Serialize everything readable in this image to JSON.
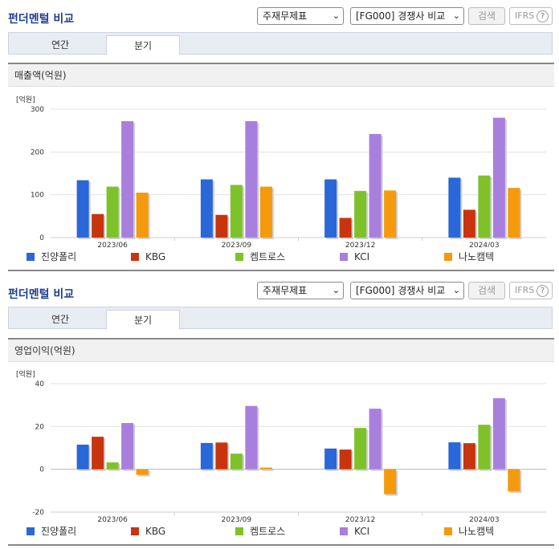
{
  "panels": [
    {
      "title": "펀더멘털 비교",
      "select1": "주재무제표",
      "select2": "[FG000] 경쟁사 비교",
      "search_label": "검색",
      "ifrs_label": "IFRS",
      "ifrs_help": "?",
      "tabs": [
        {
          "label": "연간"
        },
        {
          "label": "분기"
        }
      ],
      "active_tab": 1,
      "subtitle": "매출액(억원)",
      "unit": "[억원]"
    },
    {
      "title": "펀더멘털 비교",
      "select1": "주재무제표",
      "select2": "[FG000] 경쟁사 비교",
      "search_label": "검색",
      "ifrs_label": "IFRS",
      "ifrs_help": "?",
      "tabs": [
        {
          "label": "연간"
        },
        {
          "label": "분기"
        }
      ],
      "active_tab": 1,
      "subtitle": "영업이익(억원)",
      "unit": "[억원]"
    }
  ],
  "chart_data": [
    {
      "type": "bar",
      "title": "매출액(억원)",
      "ylabel": "[억원]",
      "categories": [
        "2023/06",
        "2023/09",
        "2023/12",
        "2024/03"
      ],
      "ylim": [
        0,
        300
      ],
      "yticks": [
        0,
        100,
        200,
        300
      ],
      "grid": true,
      "legend_position": "bottom",
      "series": [
        {
          "name": "진양폴리",
          "color": "#2a67d8",
          "values": [
            134,
            136,
            136,
            140
          ]
        },
        {
          "name": "KBG",
          "color": "#c8340e",
          "values": [
            55,
            53,
            46,
            65
          ]
        },
        {
          "name": "켐트로스",
          "color": "#7ec22a",
          "values": [
            119,
            123,
            109,
            145
          ]
        },
        {
          "name": "KCI",
          "color": "#a97fdd",
          "values": [
            272,
            272,
            242,
            280
          ]
        },
        {
          "name": "나노캠텍",
          "color": "#f49a0c",
          "values": [
            105,
            119,
            110,
            116
          ]
        }
      ]
    },
    {
      "type": "bar",
      "title": "영업이익(억원)",
      "ylabel": "[억원]",
      "categories": [
        "2023/06",
        "2023/09",
        "2023/12",
        "2024/03"
      ],
      "ylim": [
        -20,
        40
      ],
      "yticks": [
        -20,
        0,
        20,
        40
      ],
      "grid": true,
      "legend_position": "bottom",
      "series": [
        {
          "name": "진양폴리",
          "color": "#2a67d8",
          "values": [
            11.5,
            12.3,
            9.7,
            12.6
          ]
        },
        {
          "name": "KBG",
          "color": "#c8340e",
          "values": [
            15.2,
            12.5,
            9.2,
            12.2
          ]
        },
        {
          "name": "켐트로스",
          "color": "#7ec22a",
          "values": [
            3.2,
            7.3,
            19.3,
            20.8
          ]
        },
        {
          "name": "KCI",
          "color": "#a97fdd",
          "values": [
            21.6,
            29.6,
            28.3,
            33.2
          ]
        },
        {
          "name": "나노캠텍",
          "color": "#f49a0c",
          "values": [
            -2.6,
            0.8,
            -11.6,
            -10.3
          ]
        }
      ]
    }
  ]
}
